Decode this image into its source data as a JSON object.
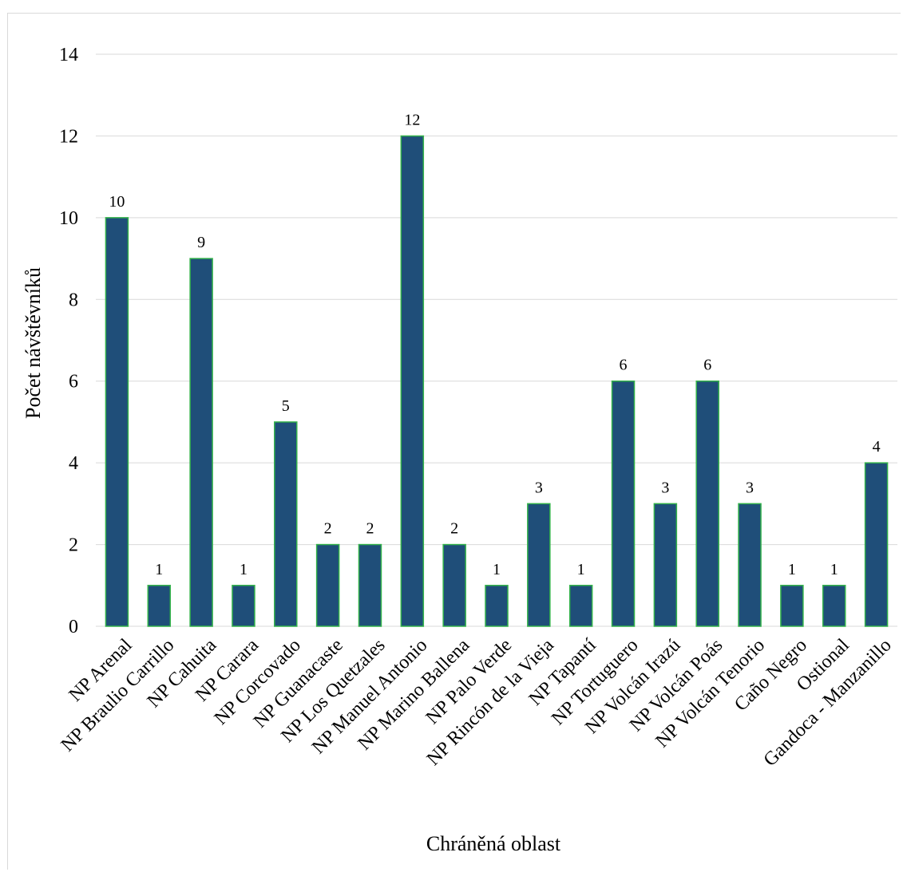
{
  "chart_data": {
    "type": "bar",
    "xlabel": "Chráněná oblast",
    "ylabel": "Počet návštěvníků",
    "ylim": [
      0,
      14
    ],
    "yticks": [
      0,
      2,
      4,
      6,
      8,
      10,
      12,
      14
    ],
    "grid": true,
    "data_labels": true,
    "categories": [
      "NP Arenal",
      "NP Braulio Carrillo",
      "NP Cahuita",
      "NP Carara",
      "NP Corcovado",
      "NP Guanacaste",
      "NP Los Quetzales",
      "NP Manuel Antonio",
      "NP Marino Ballena",
      "NP Palo Verde",
      "NP Rincón de la Vieja",
      "NP Tapantí",
      "NP Tortuguero",
      "NP Volcán Irazú",
      "NP Volcán Poás",
      "NP Volcán Tenorio",
      "Caño Negro",
      "Ostional",
      "Gandoca - Manzanillo"
    ],
    "values": [
      10,
      1,
      9,
      1,
      5,
      2,
      2,
      12,
      2,
      1,
      3,
      1,
      6,
      3,
      6,
      3,
      1,
      1,
      4
    ],
    "colors": {
      "bar_fill": "#1f4e79",
      "bar_stroke": "#33b24a"
    }
  }
}
